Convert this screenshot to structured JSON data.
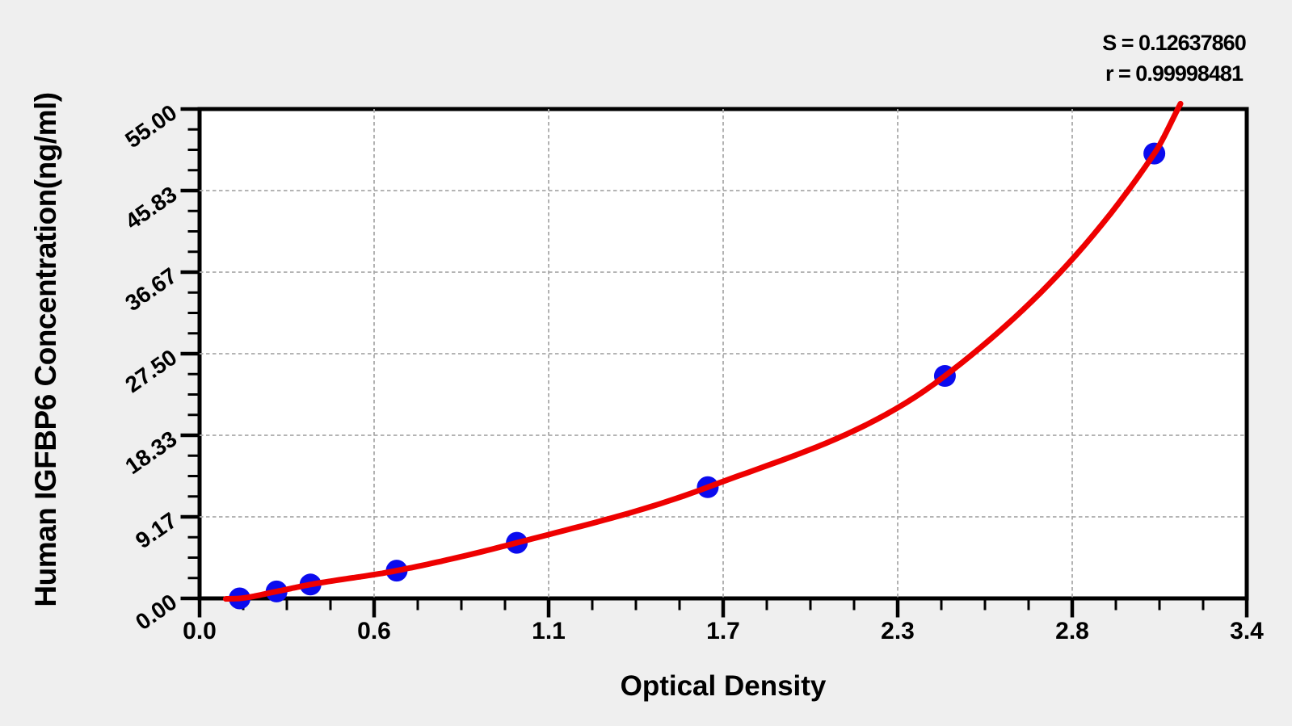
{
  "chart_data": {
    "type": "scatter",
    "title": "",
    "xlabel": "Optical Density",
    "ylabel": "Human IGFBP6 Concentration(ng/ml)",
    "stats": {
      "s_label": "S = 0.12637860",
      "r_label": "r = 0.99998481"
    },
    "xlim": [
      0,
      3.4
    ],
    "ylim": [
      0,
      55
    ],
    "x_tick_labels": [
      "0.0",
      "0.6",
      "1.1",
      "1.7",
      "2.3",
      "2.8",
      "3.4"
    ],
    "y_tick_labels": [
      "0.00",
      "9.17",
      "18.33",
      "27.50",
      "36.67",
      "45.83",
      "55.00"
    ],
    "minor_ticks_per_interval": 3,
    "grid": "dashed",
    "legend_position": "none",
    "series": [
      {
        "name": "standard-points",
        "type": "scatter",
        "points": [
          [
            0.13,
            0.0
          ],
          [
            0.25,
            0.78
          ],
          [
            0.36,
            1.56
          ],
          [
            0.64,
            3.12
          ],
          [
            1.03,
            6.25
          ],
          [
            1.65,
            12.5
          ],
          [
            2.42,
            25.0
          ],
          [
            3.1,
            50.0
          ]
        ]
      },
      {
        "name": "fitted-curve",
        "type": "line",
        "anchors": [
          [
            0.085,
            -0.05
          ],
          [
            0.13,
            0.0
          ],
          [
            0.25,
            0.78
          ],
          [
            0.36,
            1.56
          ],
          [
            0.64,
            3.12
          ],
          [
            1.03,
            6.25
          ],
          [
            1.65,
            12.5
          ],
          [
            2.42,
            25.0
          ],
          [
            3.1,
            50.0
          ],
          [
            3.185,
            55.6
          ]
        ]
      }
    ],
    "colors": {
      "curve": "#ee0000",
      "points": "#0b0bee",
      "grid": "#aaaaaa",
      "axis": "#000000",
      "plot_bg": "#ffffff",
      "fig_bg": "#efefef",
      "text": "#000000"
    }
  }
}
